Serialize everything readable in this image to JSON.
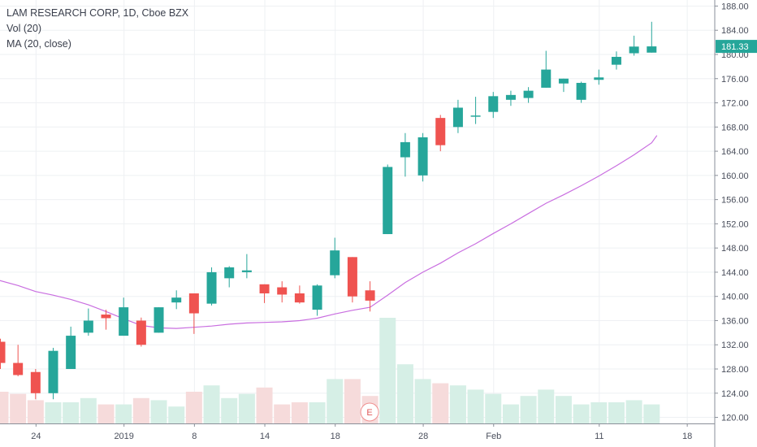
{
  "legend": {
    "title": "LAM RESEARCH CORP, 1D, Cboe BZX",
    "volume": "Vol (20)",
    "ma": "MA (20, close)"
  },
  "earnings_marker": "E",
  "colors": {
    "up": "#26a69a",
    "down": "#ef5350",
    "ma": "#c96ee0",
    "vol_up": "#d6efe6",
    "vol_down": "#f6dbdb",
    "grid": "#eef0f3",
    "axis_text": "#4a4f5c",
    "last_price_bg": "#26a69a"
  },
  "chart_data": {
    "type": "candlestick",
    "title": "LAM RESEARCH CORP, 1D, Cboe BZX",
    "y_range": [
      119.0,
      189.0
    ],
    "y_ticks": [
      "120.00",
      "124.00",
      "128.00",
      "132.00",
      "136.00",
      "140.00",
      "144.00",
      "148.00",
      "152.00",
      "156.00",
      "160.00",
      "164.00",
      "168.00",
      "172.00",
      "176.00",
      "180.00",
      "184.00",
      "188.00"
    ],
    "x_ticks": [
      {
        "index": 2,
        "label": "24"
      },
      {
        "index": 7,
        "label": "2019"
      },
      {
        "index": 11,
        "label": "8"
      },
      {
        "index": 15,
        "label": "14"
      },
      {
        "index": 19,
        "label": "18"
      },
      {
        "index": 24,
        "label": "28"
      },
      {
        "index": 28,
        "label": "Feb"
      },
      {
        "index": 34,
        "label": "11"
      },
      {
        "index": 39,
        "label": "18"
      }
    ],
    "last_price": "181.33",
    "last_price_value": 181.33,
    "candles": [
      {
        "o": 132.5,
        "h": 133.0,
        "l": 128.0,
        "c": 129.0
      },
      {
        "o": 129.0,
        "h": 132.0,
        "l": 126.8,
        "c": 127.0
      },
      {
        "o": 127.5,
        "h": 128.0,
        "l": 123.0,
        "c": 124.0
      },
      {
        "o": 124.0,
        "h": 131.5,
        "l": 123.0,
        "c": 131.0
      },
      {
        "o": 128.0,
        "h": 135.0,
        "l": 128.0,
        "c": 133.5
      },
      {
        "o": 134.0,
        "h": 138.0,
        "l": 133.5,
        "c": 136.0
      },
      {
        "o": 137.0,
        "h": 137.8,
        "l": 134.5,
        "c": 136.4
      },
      {
        "o": 133.5,
        "h": 139.8,
        "l": 133.5,
        "c": 138.2
      },
      {
        "o": 136.0,
        "h": 136.5,
        "l": 131.7,
        "c": 132.0
      },
      {
        "o": 134.0,
        "h": 138.2,
        "l": 134.0,
        "c": 138.2
      },
      {
        "o": 139.0,
        "h": 141.0,
        "l": 137.9,
        "c": 139.8
      },
      {
        "o": 140.5,
        "h": 140.5,
        "l": 133.8,
        "c": 137.2
      },
      {
        "o": 138.8,
        "h": 144.8,
        "l": 138.5,
        "c": 144.0
      },
      {
        "o": 143.0,
        "h": 145.0,
        "l": 141.5,
        "c": 144.8
      },
      {
        "o": 144.0,
        "h": 147.0,
        "l": 143.0,
        "c": 144.3
      },
      {
        "o": 142.0,
        "h": 142.0,
        "l": 138.9,
        "c": 140.5
      },
      {
        "o": 141.5,
        "h": 142.5,
        "l": 139.0,
        "c": 140.3
      },
      {
        "o": 140.5,
        "h": 141.8,
        "l": 138.8,
        "c": 139.0
      },
      {
        "o": 137.8,
        "h": 142.0,
        "l": 136.8,
        "c": 141.8
      },
      {
        "o": 143.5,
        "h": 149.7,
        "l": 143.0,
        "c": 147.6
      },
      {
        "o": 146.5,
        "h": 146.5,
        "l": 139.0,
        "c": 140.0
      },
      {
        "o": 141.0,
        "h": 142.5,
        "l": 137.5,
        "c": 139.3
      },
      {
        "o": 150.3,
        "h": 161.8,
        "l": 150.3,
        "c": 161.4
      },
      {
        "o": 163.0,
        "h": 167.0,
        "l": 159.8,
        "c": 165.5
      },
      {
        "o": 160.0,
        "h": 167.0,
        "l": 159.0,
        "c": 166.3
      },
      {
        "o": 169.5,
        "h": 170.0,
        "l": 164.0,
        "c": 165.0
      },
      {
        "o": 168.0,
        "h": 172.5,
        "l": 167.0,
        "c": 171.2
      },
      {
        "o": 169.7,
        "h": 173.0,
        "l": 168.5,
        "c": 169.9
      },
      {
        "o": 170.5,
        "h": 173.8,
        "l": 169.5,
        "c": 173.1
      },
      {
        "o": 172.5,
        "h": 174.0,
        "l": 171.5,
        "c": 173.3
      },
      {
        "o": 172.8,
        "h": 174.6,
        "l": 172.0,
        "c": 174.0
      },
      {
        "o": 174.5,
        "h": 180.6,
        "l": 174.5,
        "c": 177.5
      },
      {
        "o": 175.2,
        "h": 176.0,
        "l": 173.8,
        "c": 176.0
      },
      {
        "o": 172.5,
        "h": 175.5,
        "l": 172.0,
        "c": 175.3
      },
      {
        "o": 175.8,
        "h": 177.5,
        "l": 175.0,
        "c": 176.2
      },
      {
        "o": 178.3,
        "h": 180.5,
        "l": 177.5,
        "c": 179.6
      },
      {
        "o": 180.2,
        "h": 183.1,
        "l": 179.8,
        "c": 181.3
      },
      {
        "o": 180.3,
        "h": 185.4,
        "l": 180.3,
        "c": 181.33
      }
    ],
    "volume_relative": [
      0.3,
      0.28,
      0.22,
      0.2,
      0.2,
      0.24,
      0.18,
      0.18,
      0.24,
      0.22,
      0.16,
      0.3,
      0.36,
      0.24,
      0.28,
      0.34,
      0.18,
      0.2,
      0.2,
      0.42,
      0.42,
      0.26,
      1.0,
      0.56,
      0.42,
      0.38,
      0.36,
      0.32,
      0.28,
      0.18,
      0.26,
      0.32,
      0.26,
      0.18,
      0.2,
      0.2,
      0.22,
      0.18
    ],
    "ma": [
      {
        "i": -0.5,
        "v": 143.0
      },
      {
        "i": 1,
        "v": 141.8
      },
      {
        "i": 2,
        "v": 140.8
      },
      {
        "i": 3,
        "v": 140.2
      },
      {
        "i": 4,
        "v": 139.5
      },
      {
        "i": 5,
        "v": 138.6
      },
      {
        "i": 6,
        "v": 137.5
      },
      {
        "i": 7,
        "v": 136.3
      },
      {
        "i": 8,
        "v": 135.2
      },
      {
        "i": 9,
        "v": 134.8
      },
      {
        "i": 10,
        "v": 134.7
      },
      {
        "i": 11,
        "v": 134.9
      },
      {
        "i": 12,
        "v": 135.1
      },
      {
        "i": 13,
        "v": 135.4
      },
      {
        "i": 14,
        "v": 135.6
      },
      {
        "i": 15,
        "v": 135.7
      },
      {
        "i": 16,
        "v": 135.8
      },
      {
        "i": 17,
        "v": 136.0
      },
      {
        "i": 18,
        "v": 136.4
      },
      {
        "i": 19,
        "v": 137.1
      },
      {
        "i": 20,
        "v": 137.7
      },
      {
        "i": 21,
        "v": 138.2
      },
      {
        "i": 22,
        "v": 140.2
      },
      {
        "i": 23,
        "v": 142.3
      },
      {
        "i": 24,
        "v": 144.0
      },
      {
        "i": 25,
        "v": 145.5
      },
      {
        "i": 26,
        "v": 147.2
      },
      {
        "i": 27,
        "v": 148.7
      },
      {
        "i": 28,
        "v": 150.4
      },
      {
        "i": 29,
        "v": 152.0
      },
      {
        "i": 30,
        "v": 153.7
      },
      {
        "i": 31,
        "v": 155.4
      },
      {
        "i": 32,
        "v": 156.8
      },
      {
        "i": 33,
        "v": 158.3
      },
      {
        "i": 34,
        "v": 159.9
      },
      {
        "i": 35,
        "v": 161.6
      },
      {
        "i": 36,
        "v": 163.4
      },
      {
        "i": 37,
        "v": 165.4
      },
      {
        "i": 37.3,
        "v": 166.6
      }
    ]
  }
}
